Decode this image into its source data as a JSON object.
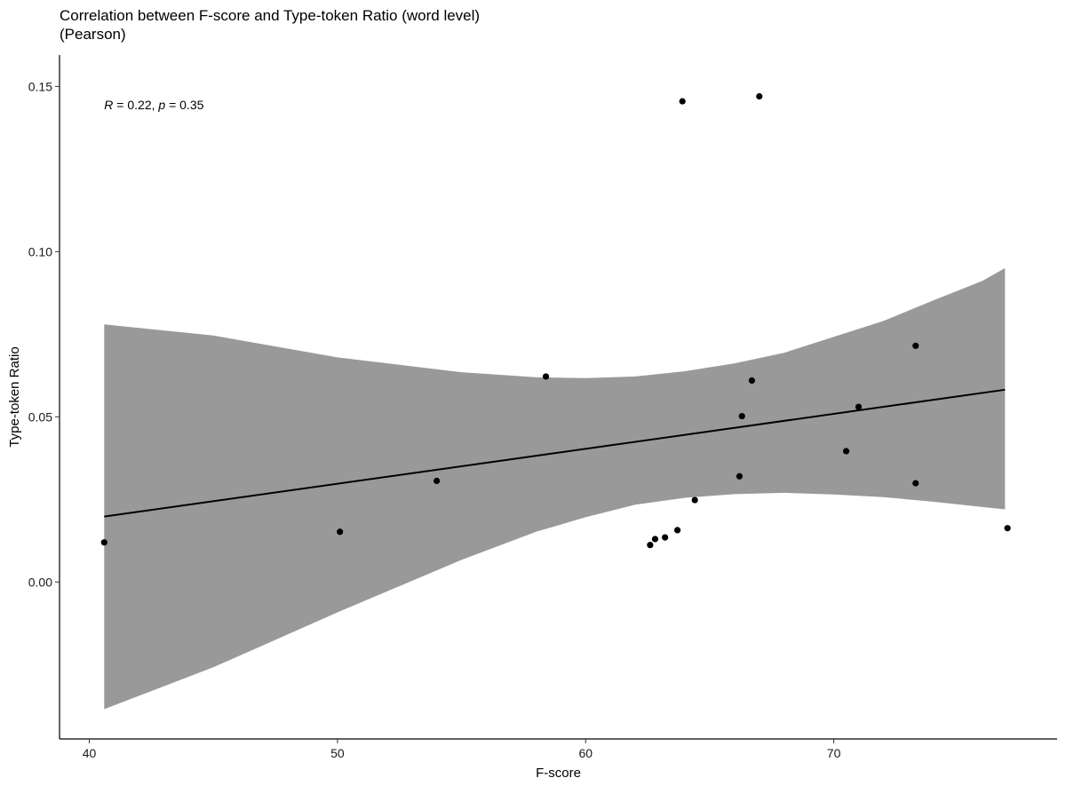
{
  "chart_data": {
    "type": "scatter",
    "title": "Correlation between F-score and Type-token Ratio (word level)",
    "subtitle": "(Pearson)",
    "xlabel": "F-score",
    "ylabel": "Type-token Ratio",
    "xlim": [
      38.8,
      79.0
    ],
    "ylim": [
      -0.0475,
      0.1595
    ],
    "x_ticks": [
      40,
      50,
      60,
      70
    ],
    "y_ticks": [
      0.0,
      0.05,
      0.1,
      0.15
    ],
    "y_tick_labels": [
      "0.00",
      "0.05",
      "0.10",
      "0.15"
    ],
    "x_tick_labels": [
      "40",
      "50",
      "60",
      "70"
    ],
    "grid": false,
    "annotation": {
      "r_label": "R",
      "r_value": " = 0.22, ",
      "p_label": "p",
      "p_value": " = 0.35",
      "x": 40.6,
      "y": 0.1445
    },
    "points": [
      {
        "x": 40.6,
        "y": 0.012
      },
      {
        "x": 50.1,
        "y": 0.0152
      },
      {
        "x": 54.0,
        "y": 0.0306
      },
      {
        "x": 58.4,
        "y": 0.0622
      },
      {
        "x": 62.6,
        "y": 0.0112
      },
      {
        "x": 62.8,
        "y": 0.013
      },
      {
        "x": 63.2,
        "y": 0.0135
      },
      {
        "x": 63.7,
        "y": 0.0157
      },
      {
        "x": 63.9,
        "y": 0.1455
      },
      {
        "x": 64.4,
        "y": 0.0248
      },
      {
        "x": 66.2,
        "y": 0.032
      },
      {
        "x": 66.3,
        "y": 0.0502
      },
      {
        "x": 66.7,
        "y": 0.061
      },
      {
        "x": 67.0,
        "y": 0.147
      },
      {
        "x": 70.5,
        "y": 0.0396
      },
      {
        "x": 71.0,
        "y": 0.053
      },
      {
        "x": 73.3,
        "y": 0.0299
      },
      {
        "x": 73.3,
        "y": 0.0715
      },
      {
        "x": 77.0,
        "y": 0.0163
      }
    ],
    "regression": {
      "x0": 40.6,
      "y0": 0.0198,
      "x1": 76.9,
      "y1": 0.0582
    },
    "confidence_band": [
      {
        "x": 40.6,
        "lower": -0.0385,
        "upper": 0.078
      },
      {
        "x": 45.0,
        "lower": -0.0258,
        "upper": 0.0746
      },
      {
        "x": 50.0,
        "lower": -0.0092,
        "upper": 0.068
      },
      {
        "x": 55.0,
        "lower": 0.0067,
        "upper": 0.0635
      },
      {
        "x": 58.0,
        "lower": 0.0152,
        "upper": 0.062
      },
      {
        "x": 60.0,
        "lower": 0.0196,
        "upper": 0.0617
      },
      {
        "x": 62.0,
        "lower": 0.0234,
        "upper": 0.0622
      },
      {
        "x": 64.0,
        "lower": 0.0255,
        "upper": 0.0638
      },
      {
        "x": 66.0,
        "lower": 0.0266,
        "upper": 0.0662
      },
      {
        "x": 68.0,
        "lower": 0.027,
        "upper": 0.0694
      },
      {
        "x": 70.0,
        "lower": 0.0265,
        "upper": 0.0742
      },
      {
        "x": 72.0,
        "lower": 0.0257,
        "upper": 0.079
      },
      {
        "x": 74.0,
        "lower": 0.0243,
        "upper": 0.0852
      },
      {
        "x": 76.0,
        "lower": 0.0227,
        "upper": 0.0912
      },
      {
        "x": 76.9,
        "lower": 0.022,
        "upper": 0.095
      }
    ],
    "colors": {
      "points": "#000000",
      "line": "#000000",
      "band": "#999999",
      "axis": "#000000",
      "background": "#ffffff"
    }
  }
}
